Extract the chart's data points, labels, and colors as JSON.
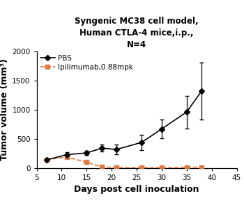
{
  "title": "Syngenic MC38 cell model,\nHuman CTLA-4 mice,i.p.,\nN=4",
  "xlabel": "Days post cell inoculation",
  "ylabel": "Tumor volume (mm³)",
  "xlim": [
    5,
    45
  ],
  "ylim": [
    0,
    2000
  ],
  "yticks": [
    0,
    500,
    1000,
    1500,
    2000
  ],
  "xticks": [
    5,
    10,
    15,
    20,
    25,
    30,
    35,
    40,
    45
  ],
  "pbs": {
    "x": [
      7,
      11,
      15,
      18,
      21,
      26,
      30,
      35,
      38
    ],
    "y": [
      140,
      230,
      260,
      340,
      320,
      440,
      670,
      960,
      1320
    ],
    "yerr": [
      20,
      40,
      40,
      60,
      80,
      130,
      160,
      280,
      490
    ],
    "color": "#000000",
    "marker": "D",
    "markersize": 4,
    "linewidth": 1.2,
    "label": "PBS"
  },
  "ipi": {
    "x": [
      7,
      11,
      15,
      18,
      21,
      26,
      30,
      35,
      38
    ],
    "y": [
      145,
      190,
      100,
      20,
      10,
      10,
      5,
      15,
      15
    ],
    "color": "#E07840",
    "marker": "s",
    "markersize": 4,
    "linewidth": 1.2,
    "linestyle": "--",
    "label": "Ipilimumab,0.88mpk"
  },
  "background_color": "#ffffff",
  "title_fontsize": 8.5,
  "label_fontsize": 9,
  "tick_fontsize": 7.5,
  "legend_fontsize": 7.5
}
